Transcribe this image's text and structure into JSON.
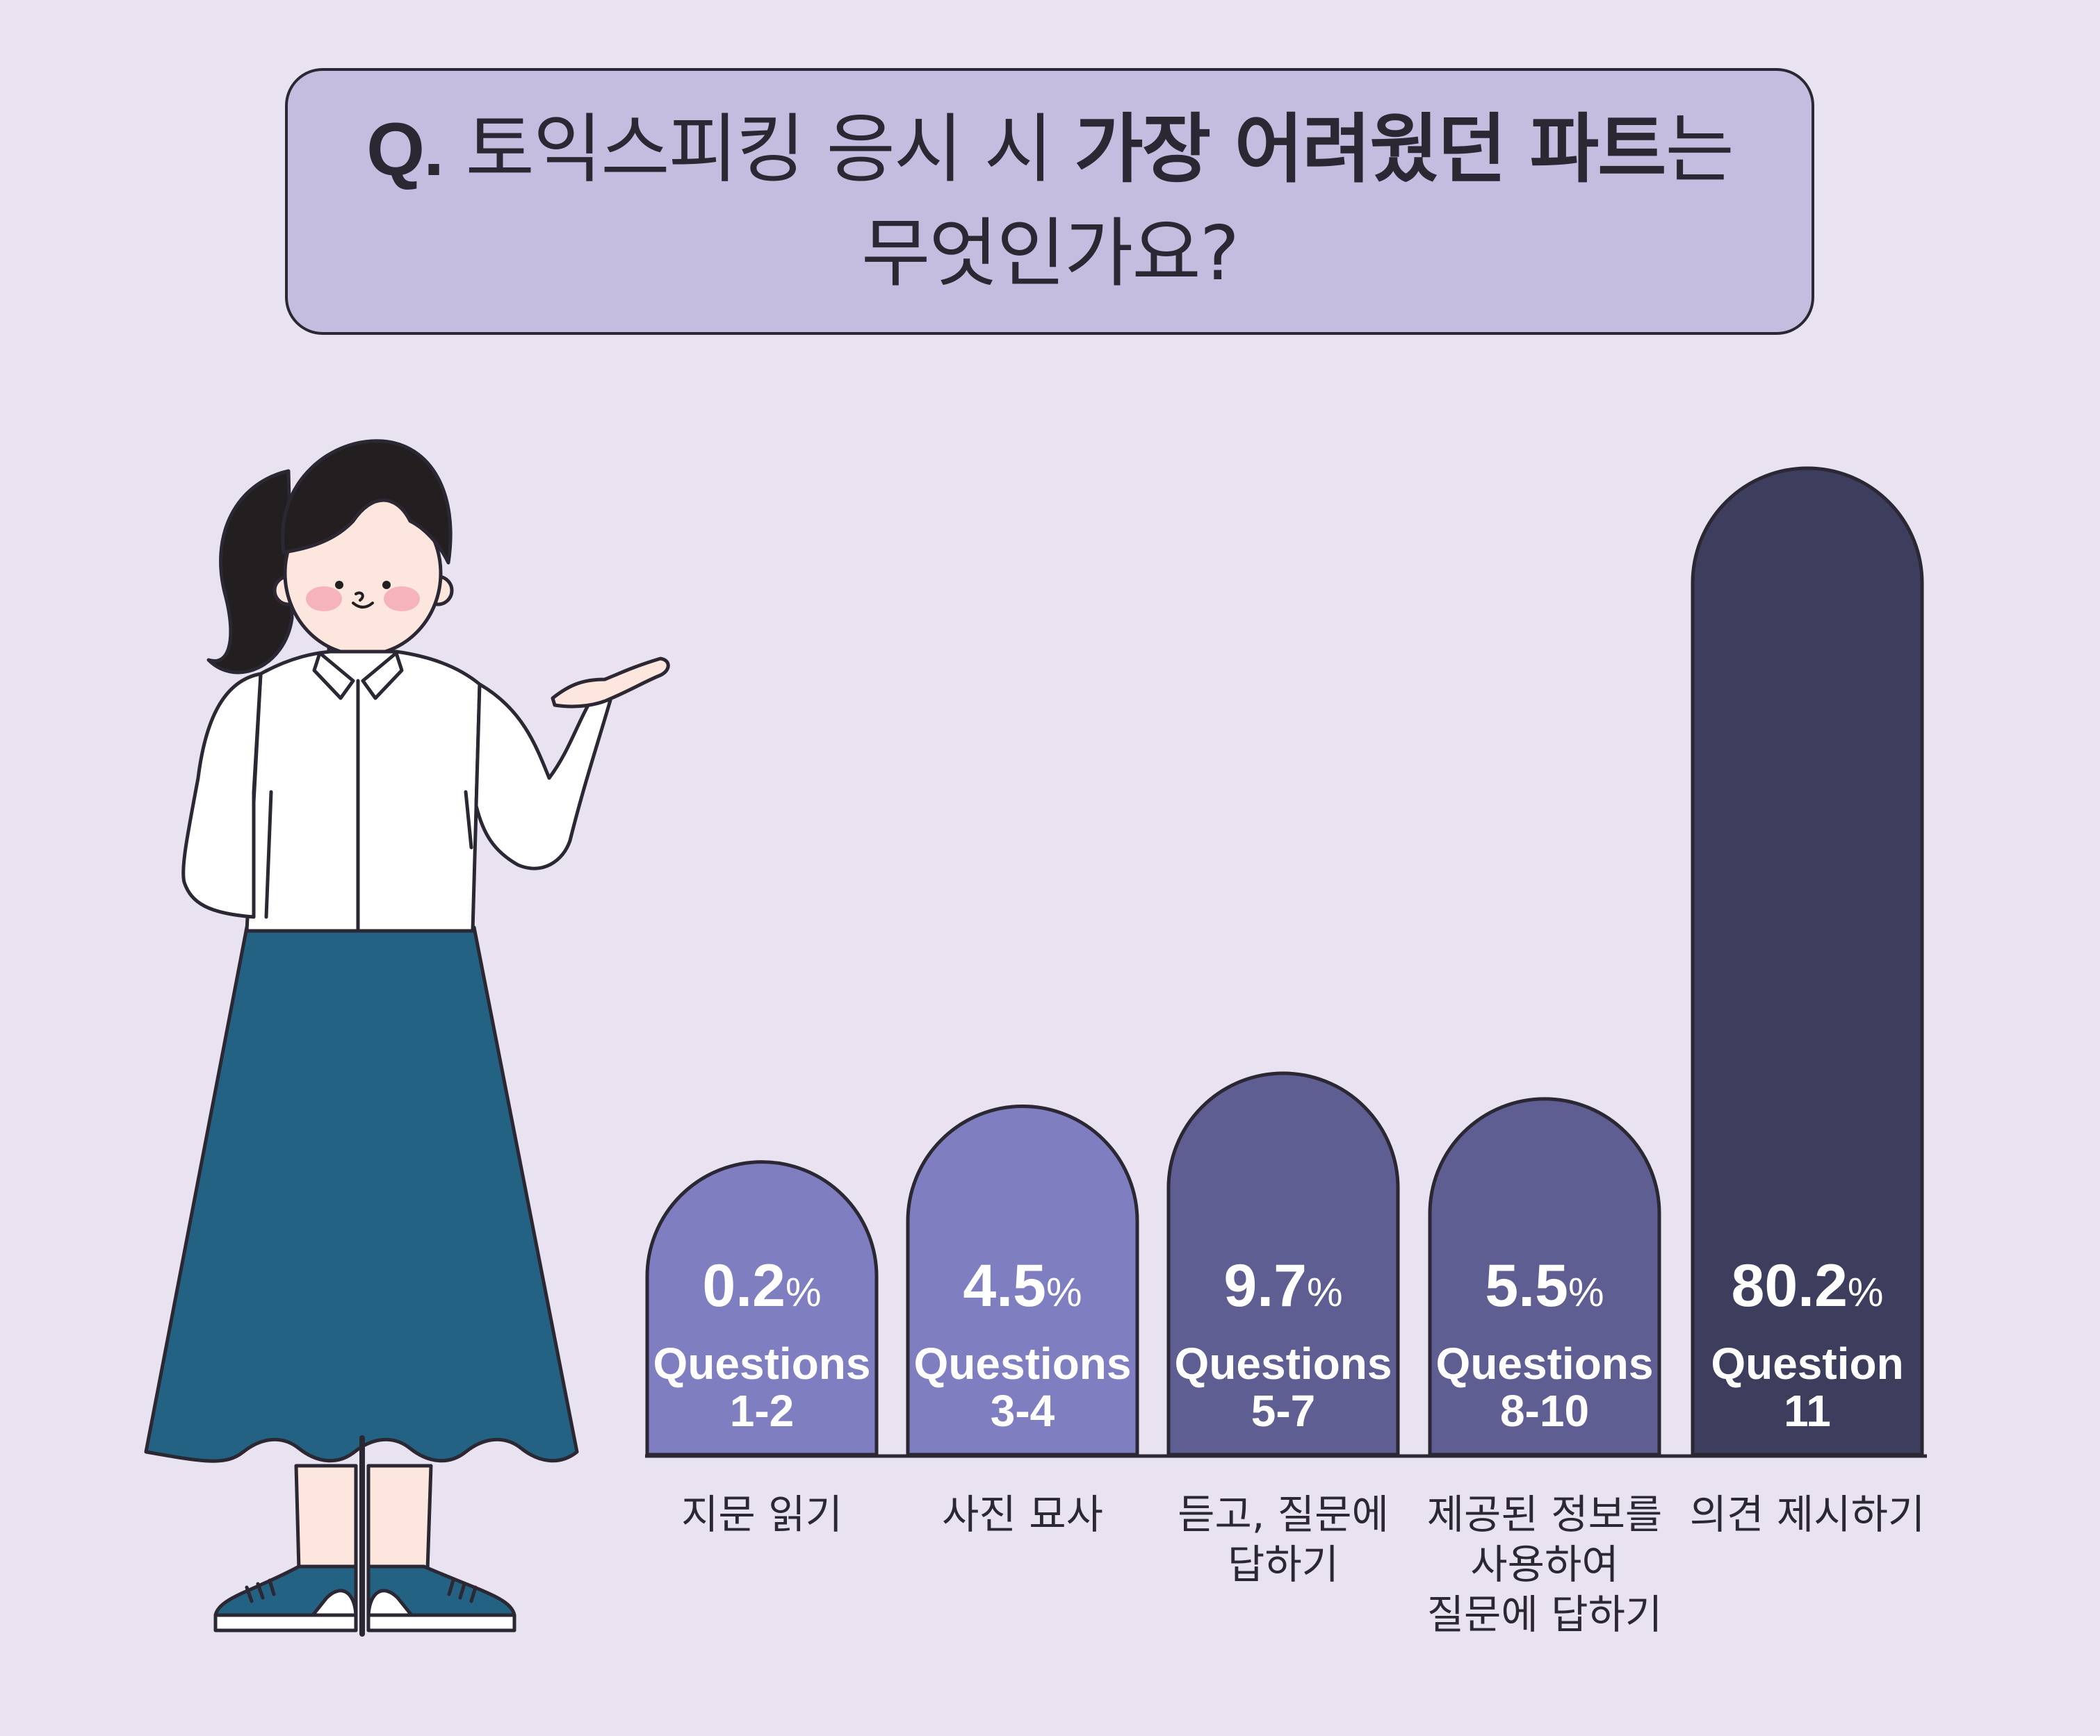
{
  "title": {
    "prefix": "Q.",
    "line1_pre": "토익스피킹 응시 시",
    "line1_strong": "가장 어려웠던 파트",
    "line1_post": "는",
    "line2": "무엇인가요?"
  },
  "chart_data": {
    "type": "bar",
    "value_unit": "%",
    "categories": [
      "지문 읽기",
      "사진 묘사",
      "듣고, 질문에 답하기",
      "제공된 정보를 사용하여 질문에 답하기",
      "의견 제시하기"
    ],
    "values": [
      0.2,
      4.5,
      9.7,
      5.5,
      80.2
    ],
    "bars": [
      {
        "value_text": "0.2",
        "unit": "%",
        "label_lines": [
          "Questions",
          "1-2"
        ],
        "category_lines": [
          "지문 읽기"
        ],
        "color": "#7f7ec0"
      },
      {
        "value_text": "4.5",
        "unit": "%",
        "label_lines": [
          "Questions",
          "3-4"
        ],
        "category_lines": [
          "사진 묘사"
        ],
        "color": "#7f7ec0"
      },
      {
        "value_text": "9.7",
        "unit": "%",
        "label_lines": [
          "Questions",
          "5-7"
        ],
        "category_lines": [
          "듣고, 질문에",
          "답하기"
        ],
        "color": "#5e5e92"
      },
      {
        "value_text": "5.5",
        "unit": "%",
        "label_lines": [
          "Questions",
          "8-10"
        ],
        "category_lines": [
          "제공된 정보를",
          "사용하여",
          "질문에 답하기"
        ],
        "color": "#5e5e92"
      },
      {
        "value_text": "80.2",
        "unit": "%",
        "label_lines": [
          "Question",
          "11"
        ],
        "category_lines": [
          "의견 제시하기"
        ],
        "color": "#3d3d5e"
      }
    ],
    "legend": "none",
    "grid": false
  },
  "colors": {
    "background": "#e9e3f1",
    "title_box": "#c4bddf",
    "outline": "#2b2733",
    "shirt": "#ffffff",
    "skirt": "#246283",
    "skin": "#fde6de",
    "hair": "#231f20",
    "cheek": "#f7b3bc",
    "shoes": "#246283"
  },
  "illustration": "woman-presenting-icon"
}
